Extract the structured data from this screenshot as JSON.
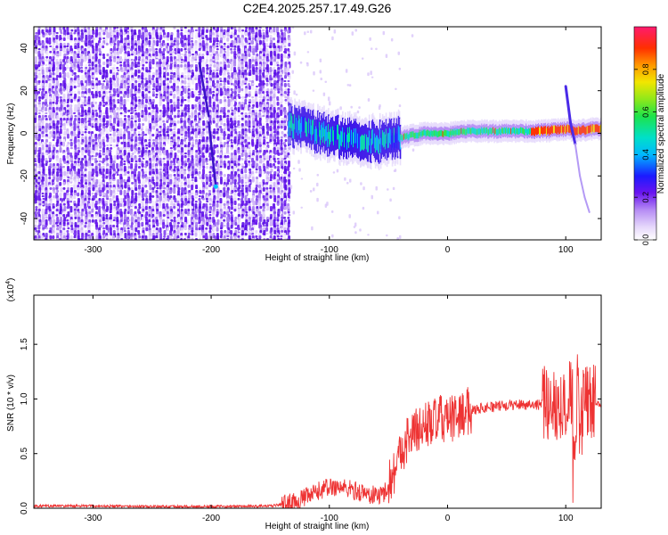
{
  "figure": {
    "title": "C2E4.2025.257.17.49.G26"
  },
  "chart_data": [
    {
      "type": "heatmap",
      "name": "spectrogram",
      "xlabel": "Height of straight line (km)",
      "ylabel": "Frequency (Hz)",
      "xlim": [
        -350,
        130
      ],
      "ylim": [
        -50,
        50
      ],
      "x_ticks": [
        -300,
        -200,
        -100,
        0,
        100
      ],
      "y_ticks": [
        -40,
        -20,
        0,
        20,
        40
      ],
      "noise_region_x": [
        -350,
        -135
      ],
      "signal_region_x": [
        -135,
        130
      ],
      "signal_track": {
        "x": [
          -135,
          -120,
          -100,
          -80,
          -60,
          -40,
          -20,
          0,
          20,
          40,
          60,
          80,
          100,
          110,
          120,
          130
        ],
        "y": [
          4,
          2,
          -1,
          -3,
          -4,
          -2,
          0,
          0,
          1,
          1,
          1,
          1,
          2,
          1,
          2,
          2
        ]
      },
      "streak_1": {
        "x": [
          -210,
          -202
        ],
        "y": [
          33,
          8
        ]
      },
      "streak_2": {
        "x": [
          -202,
          -196
        ],
        "y": [
          5,
          -25
        ]
      },
      "tail_feature": {
        "x": [
          100,
          104,
          108,
          112,
          116,
          120
        ],
        "y": [
          22,
          5,
          -5,
          -20,
          -30,
          -37
        ]
      },
      "colorbar": {
        "label": "Normalized spectral amplitude",
        "range": [
          0.0,
          1.0
        ],
        "ticks": [
          0.0,
          0.2,
          0.4,
          0.6,
          0.8
        ],
        "tick_labels": [
          "0.0",
          "0.2",
          "0.4",
          "0.6",
          "0.8"
        ]
      }
    },
    {
      "type": "line",
      "name": "snr",
      "xlabel": "Height of straight line (km)",
      "ylabel": "SNR (10 * v/v)",
      "scale_label": "(x10",
      "scale_exponent": "4",
      "scale_close": ")",
      "xlim": [
        -350,
        130
      ],
      "ylim": [
        0,
        1.95
      ],
      "x_ticks": [
        -300,
        -200,
        -100,
        0,
        100
      ],
      "y_ticks": [
        0.0,
        0.5,
        1.0,
        1.5
      ],
      "y_tick_labels": [
        "0.0",
        "0.5",
        "1.0",
        "1.5"
      ],
      "color": "#ee3333",
      "series": [
        {
          "name": "SNR",
          "x": [
            -350,
            -300,
            -250,
            -200,
            -150,
            -130,
            -115,
            -105,
            -95,
            -85,
            -75,
            -65,
            -55,
            -50,
            -45,
            -40,
            -35,
            -30,
            -25,
            -20,
            -15,
            -10,
            -5,
            0,
            5,
            10,
            15,
            20,
            30,
            40,
            50,
            60,
            70,
            80,
            90,
            95,
            100,
            105,
            108,
            110,
            112,
            115,
            120,
            125,
            130
          ],
          "y": [
            0.02,
            0.02,
            0.015,
            0.015,
            0.02,
            0.05,
            0.12,
            0.18,
            0.2,
            0.18,
            0.15,
            0.12,
            0.12,
            0.22,
            0.35,
            0.5,
            0.62,
            0.68,
            0.72,
            0.75,
            0.78,
            0.8,
            0.82,
            0.8,
            0.82,
            0.85,
            0.88,
            0.9,
            0.92,
            0.93,
            0.94,
            0.95,
            0.95,
            0.95,
            0.96,
            0.96,
            0.95,
            1.05,
            0.6,
            1.2,
            0.5,
            1.05,
            0.98,
            0.96,
            0.96
          ]
        }
      ]
    }
  ]
}
